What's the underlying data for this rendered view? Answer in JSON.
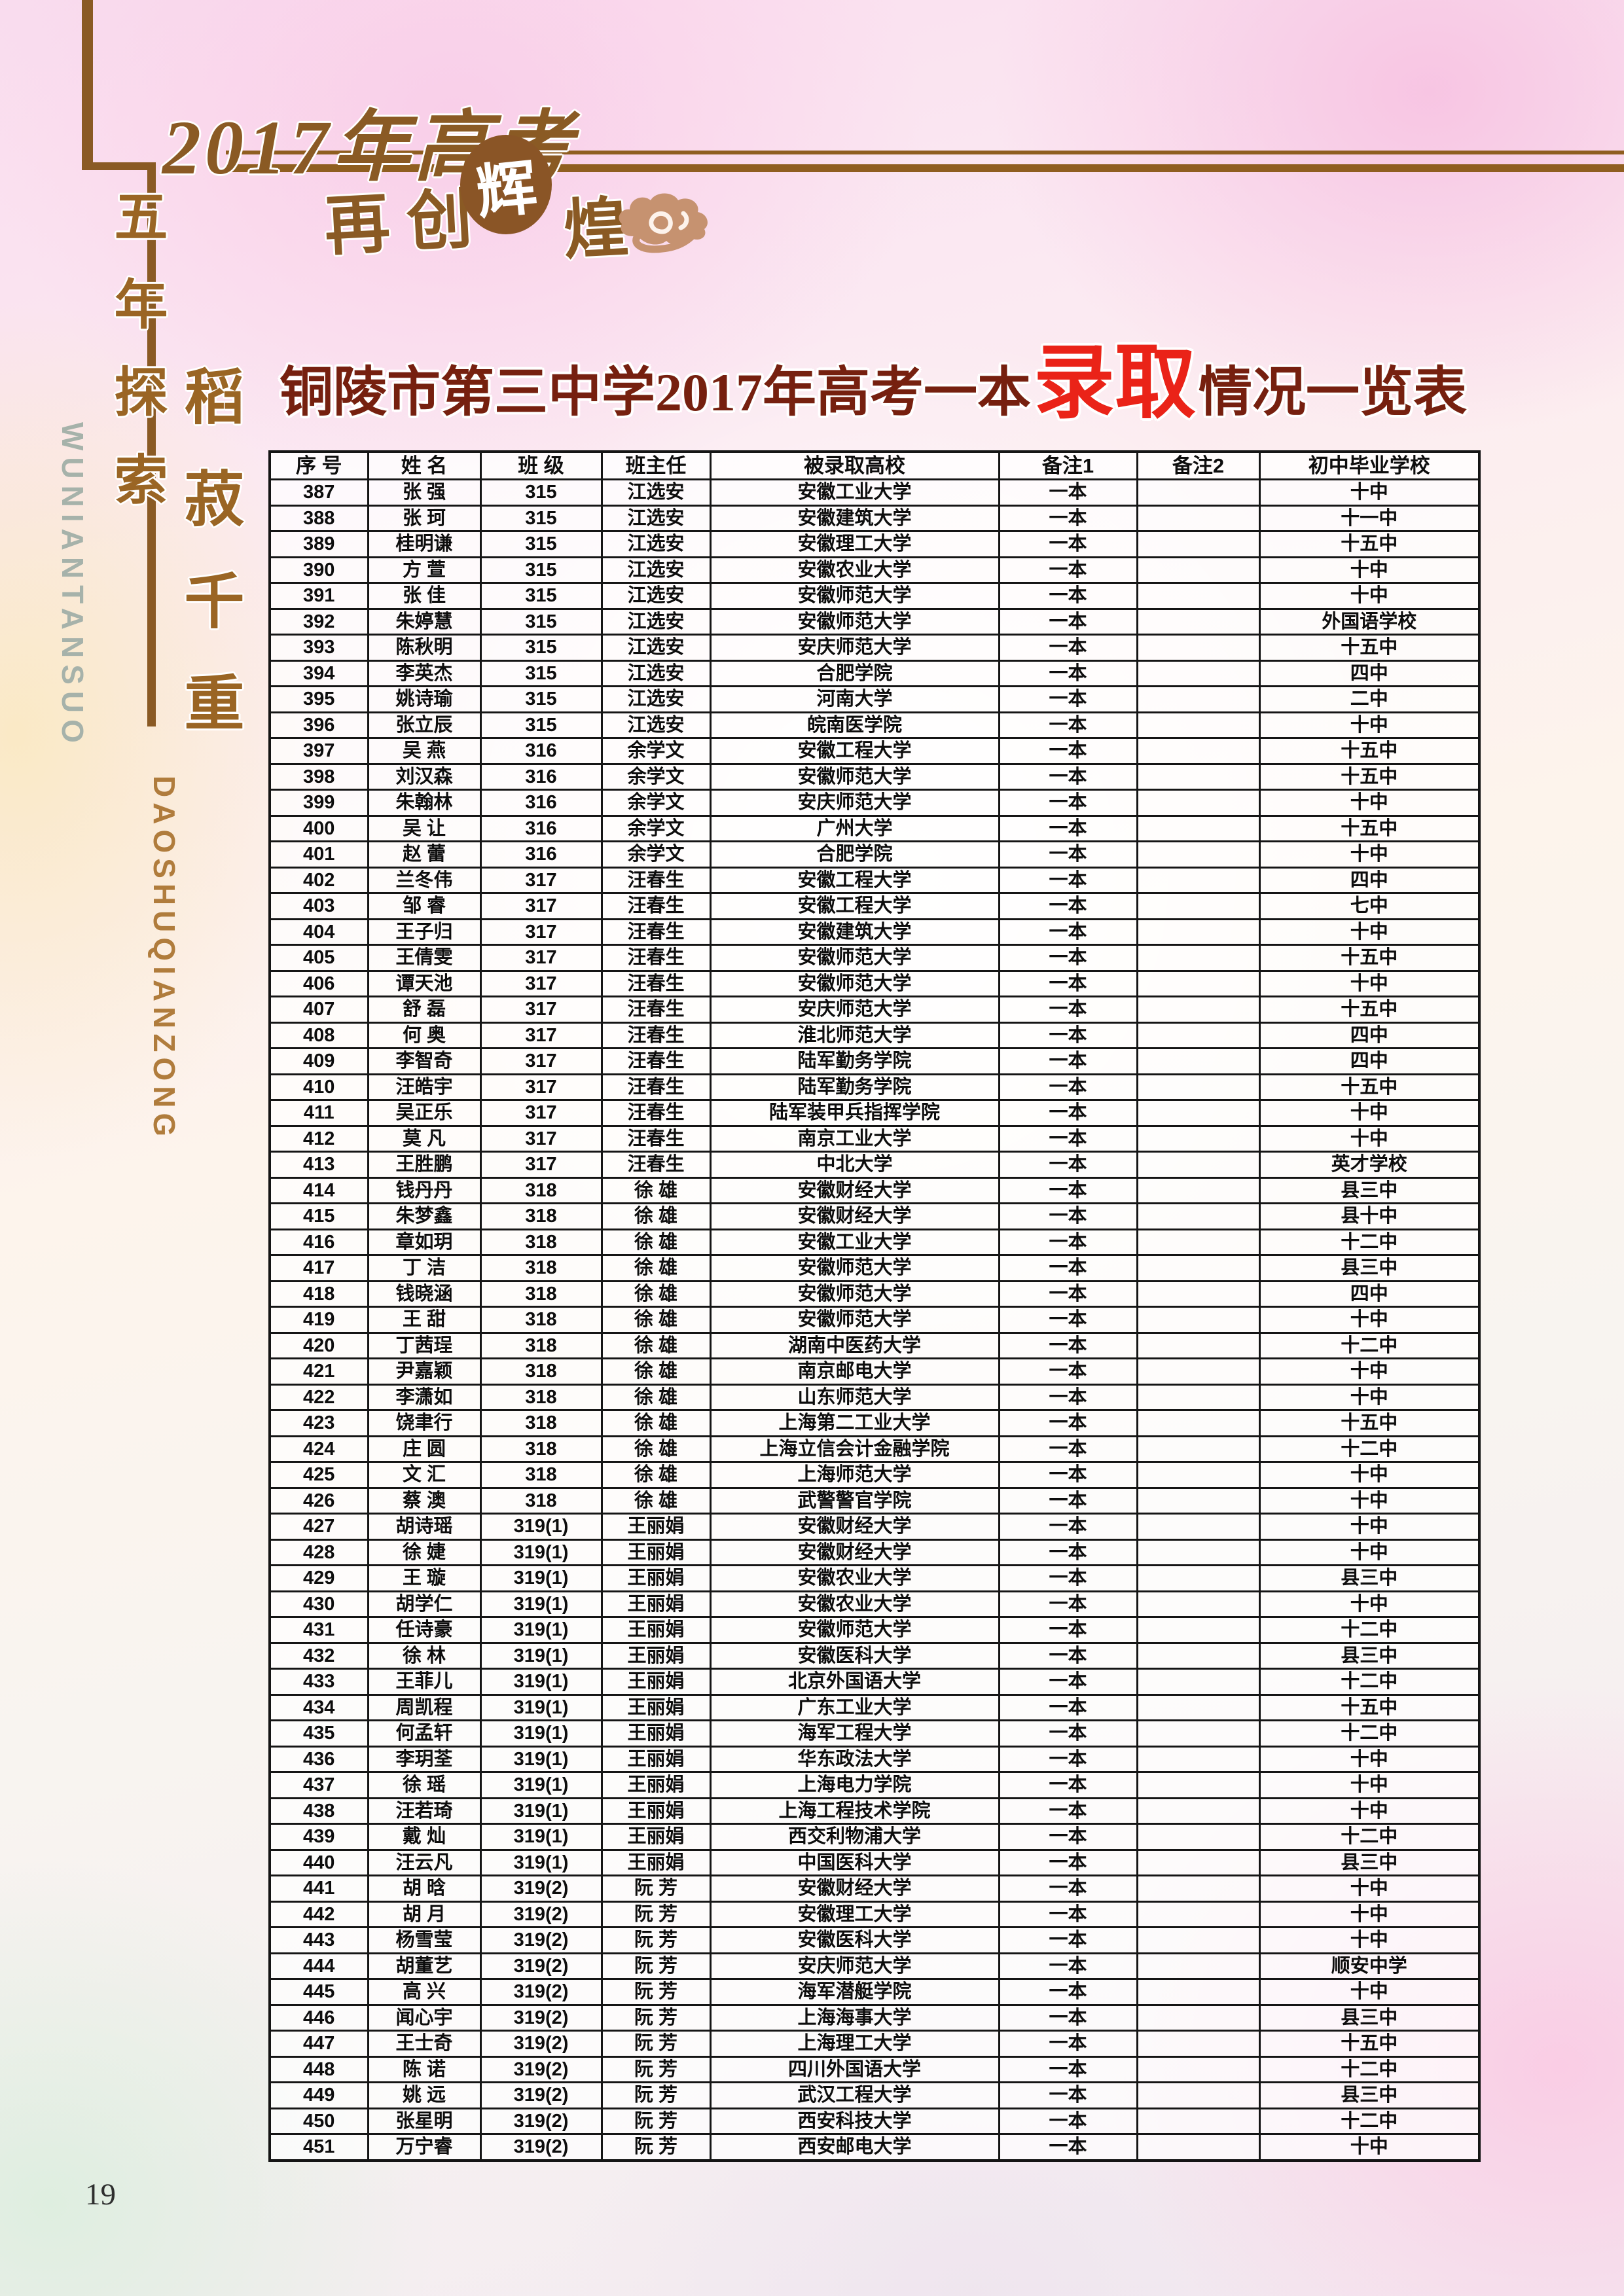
{
  "banner": {
    "year_line": "2017年高考",
    "sub_left": "再创",
    "sub_circle": "辉",
    "sub_right": "煌"
  },
  "sidebar": {
    "slogan1": "五年探索",
    "slogan1_pinyin": "WUNIANTANSUO",
    "slogan2": "稻菽千重",
    "slogan2_pinyin": "DAOSHUQIANZONG"
  },
  "title": {
    "prefix": "铜陵市第三中学2017年高考一本",
    "highlight": "录取",
    "suffix": "情况一览表"
  },
  "table": {
    "headers": [
      "序 号",
      "姓 名",
      "班 级",
      "班主任",
      "被录取高校",
      "备注1",
      "备注2",
      "初中毕业学校"
    ],
    "rows": [
      [
        "387",
        "张 强",
        "315",
        "江选安",
        "安徽工业大学",
        "一本",
        "",
        "十中"
      ],
      [
        "388",
        "张 珂",
        "315",
        "江选安",
        "安徽建筑大学",
        "一本",
        "",
        "十一中"
      ],
      [
        "389",
        "桂明谦",
        "315",
        "江选安",
        "安徽理工大学",
        "一本",
        "",
        "十五中"
      ],
      [
        "390",
        "方 萱",
        "315",
        "江选安",
        "安徽农业大学",
        "一本",
        "",
        "十中"
      ],
      [
        "391",
        "张 佳",
        "315",
        "江选安",
        "安徽师范大学",
        "一本",
        "",
        "十中"
      ],
      [
        "392",
        "朱婷慧",
        "315",
        "江选安",
        "安徽师范大学",
        "一本",
        "",
        "外国语学校"
      ],
      [
        "393",
        "陈秋明",
        "315",
        "江选安",
        "安庆师范大学",
        "一本",
        "",
        "十五中"
      ],
      [
        "394",
        "李英杰",
        "315",
        "江选安",
        "合肥学院",
        "一本",
        "",
        "四中"
      ],
      [
        "395",
        "姚诗瑜",
        "315",
        "江选安",
        "河南大学",
        "一本",
        "",
        "二中"
      ],
      [
        "396",
        "张立辰",
        "315",
        "江选安",
        "皖南医学院",
        "一本",
        "",
        "十中"
      ],
      [
        "397",
        "吴 燕",
        "316",
        "余学文",
        "安徽工程大学",
        "一本",
        "",
        "十五中"
      ],
      [
        "398",
        "刘汉森",
        "316",
        "余学文",
        "安徽师范大学",
        "一本",
        "",
        "十五中"
      ],
      [
        "399",
        "朱翰林",
        "316",
        "余学文",
        "安庆师范大学",
        "一本",
        "",
        "十中"
      ],
      [
        "400",
        "吴 让",
        "316",
        "余学文",
        "广州大学",
        "一本",
        "",
        "十五中"
      ],
      [
        "401",
        "赵 蕾",
        "316",
        "余学文",
        "合肥学院",
        "一本",
        "",
        "十中"
      ],
      [
        "402",
        "兰冬伟",
        "317",
        "汪春生",
        "安徽工程大学",
        "一本",
        "",
        "四中"
      ],
      [
        "403",
        "邹 睿",
        "317",
        "汪春生",
        "安徽工程大学",
        "一本",
        "",
        "七中"
      ],
      [
        "404",
        "王子归",
        "317",
        "汪春生",
        "安徽建筑大学",
        "一本",
        "",
        "十中"
      ],
      [
        "405",
        "王倩雯",
        "317",
        "汪春生",
        "安徽师范大学",
        "一本",
        "",
        "十五中"
      ],
      [
        "406",
        "谭天池",
        "317",
        "汪春生",
        "安徽师范大学",
        "一本",
        "",
        "十中"
      ],
      [
        "407",
        "舒 磊",
        "317",
        "汪春生",
        "安庆师范大学",
        "一本",
        "",
        "十五中"
      ],
      [
        "408",
        "何 奥",
        "317",
        "汪春生",
        "淮北师范大学",
        "一本",
        "",
        "四中"
      ],
      [
        "409",
        "李智奇",
        "317",
        "汪春生",
        "陆军勤务学院",
        "一本",
        "",
        "四中"
      ],
      [
        "410",
        "汪皓宇",
        "317",
        "汪春生",
        "陆军勤务学院",
        "一本",
        "",
        "十五中"
      ],
      [
        "411",
        "吴正乐",
        "317",
        "汪春生",
        "陆军装甲兵指挥学院",
        "一本",
        "",
        "十中"
      ],
      [
        "412",
        "莫 凡",
        "317",
        "汪春生",
        "南京工业大学",
        "一本",
        "",
        "十中"
      ],
      [
        "413",
        "王胜鹏",
        "317",
        "汪春生",
        "中北大学",
        "一本",
        "",
        "英才学校"
      ],
      [
        "414",
        "钱丹丹",
        "318",
        "徐 雄",
        "安徽财经大学",
        "一本",
        "",
        "县三中"
      ],
      [
        "415",
        "朱梦鑫",
        "318",
        "徐 雄",
        "安徽财经大学",
        "一本",
        "",
        "县十中"
      ],
      [
        "416",
        "章如玥",
        "318",
        "徐 雄",
        "安徽工业大学",
        "一本",
        "",
        "十二中"
      ],
      [
        "417",
        "丁 洁",
        "318",
        "徐 雄",
        "安徽师范大学",
        "一本",
        "",
        "县三中"
      ],
      [
        "418",
        "钱晓涵",
        "318",
        "徐 雄",
        "安徽师范大学",
        "一本",
        "",
        "四中"
      ],
      [
        "419",
        "王 甜",
        "318",
        "徐 雄",
        "安徽师范大学",
        "一本",
        "",
        "十中"
      ],
      [
        "420",
        "丁茜珵",
        "318",
        "徐 雄",
        "湖南中医药大学",
        "一本",
        "",
        "十二中"
      ],
      [
        "421",
        "尹嘉颖",
        "318",
        "徐 雄",
        "南京邮电大学",
        "一本",
        "",
        "十中"
      ],
      [
        "422",
        "李潇如",
        "318",
        "徐 雄",
        "山东师范大学",
        "一本",
        "",
        "十中"
      ],
      [
        "423",
        "饶聿行",
        "318",
        "徐 雄",
        "上海第二工业大学",
        "一本",
        "",
        "十五中"
      ],
      [
        "424",
        "庄 圆",
        "318",
        "徐 雄",
        "上海立信会计金融学院",
        "一本",
        "",
        "十二中"
      ],
      [
        "425",
        "文 汇",
        "318",
        "徐 雄",
        "上海师范大学",
        "一本",
        "",
        "十中"
      ],
      [
        "426",
        "蔡 澳",
        "318",
        "徐 雄",
        "武警警官学院",
        "一本",
        "",
        "十中"
      ],
      [
        "427",
        "胡诗瑶",
        "319(1)",
        "王丽娟",
        "安徽财经大学",
        "一本",
        "",
        "十中"
      ],
      [
        "428",
        "徐 婕",
        "319(1)",
        "王丽娟",
        "安徽财经大学",
        "一本",
        "",
        "十中"
      ],
      [
        "429",
        "王 璇",
        "319(1)",
        "王丽娟",
        "安徽农业大学",
        "一本",
        "",
        "县三中"
      ],
      [
        "430",
        "胡学仁",
        "319(1)",
        "王丽娟",
        "安徽农业大学",
        "一本",
        "",
        "十中"
      ],
      [
        "431",
        "任诗豪",
        "319(1)",
        "王丽娟",
        "安徽师范大学",
        "一本",
        "",
        "十二中"
      ],
      [
        "432",
        "徐 林",
        "319(1)",
        "王丽娟",
        "安徽医科大学",
        "一本",
        "",
        "县三中"
      ],
      [
        "433",
        "王菲儿",
        "319(1)",
        "王丽娟",
        "北京外国语大学",
        "一本",
        "",
        "十二中"
      ],
      [
        "434",
        "周凯程",
        "319(1)",
        "王丽娟",
        "广东工业大学",
        "一本",
        "",
        "十五中"
      ],
      [
        "435",
        "何孟轩",
        "319(1)",
        "王丽娟",
        "海军工程大学",
        "一本",
        "",
        "十二中"
      ],
      [
        "436",
        "李玥荃",
        "319(1)",
        "王丽娟",
        "华东政法大学",
        "一本",
        "",
        "十中"
      ],
      [
        "437",
        "徐 瑶",
        "319(1)",
        "王丽娟",
        "上海电力学院",
        "一本",
        "",
        "十中"
      ],
      [
        "438",
        "汪若琦",
        "319(1)",
        "王丽娟",
        "上海工程技术学院",
        "一本",
        "",
        "十中"
      ],
      [
        "439",
        "戴 灿",
        "319(1)",
        "王丽娟",
        "西交利物浦大学",
        "一本",
        "",
        "十二中"
      ],
      [
        "440",
        "汪云凡",
        "319(1)",
        "王丽娟",
        "中国医科大学",
        "一本",
        "",
        "县三中"
      ],
      [
        "441",
        "胡 晗",
        "319(2)",
        "阮 芳",
        "安徽财经大学",
        "一本",
        "",
        "十中"
      ],
      [
        "442",
        "胡 月",
        "319(2)",
        "阮 芳",
        "安徽理工大学",
        "一本",
        "",
        "十中"
      ],
      [
        "443",
        "杨雪莹",
        "319(2)",
        "阮 芳",
        "安徽医科大学",
        "一本",
        "",
        "十中"
      ],
      [
        "444",
        "胡董艺",
        "319(2)",
        "阮 芳",
        "安庆师范大学",
        "一本",
        "",
        "顺安中学"
      ],
      [
        "445",
        "高 兴",
        "319(2)",
        "阮 芳",
        "海军潜艇学院",
        "一本",
        "",
        "十中"
      ],
      [
        "446",
        "闻心宇",
        "319(2)",
        "阮 芳",
        "上海海事大学",
        "一本",
        "",
        "县三中"
      ],
      [
        "447",
        "王士奇",
        "319(2)",
        "阮 芳",
        "上海理工大学",
        "一本",
        "",
        "十五中"
      ],
      [
        "448",
        "陈 诺",
        "319(2)",
        "阮 芳",
        "四川外国语大学",
        "一本",
        "",
        "十二中"
      ],
      [
        "449",
        "姚 远",
        "319(2)",
        "阮 芳",
        "武汉工程大学",
        "一本",
        "",
        "县三中"
      ],
      [
        "450",
        "张星明",
        "319(2)",
        "阮 芳",
        "西安科技大学",
        "一本",
        "",
        "十二中"
      ],
      [
        "451",
        "万宁睿",
        "319(2)",
        "阮 芳",
        "西安邮电大学",
        "一本",
        "",
        "十中"
      ]
    ]
  },
  "footer": {
    "page_number": "19"
  },
  "colors": {
    "accent_brown": "#8a5a24",
    "title_dark_red": "#76200f",
    "title_bright_red": "#ea2318",
    "table_border": "#151515",
    "pinyin_gray": "#a6b2aa",
    "pinyin_tan": "#b07c3c"
  }
}
